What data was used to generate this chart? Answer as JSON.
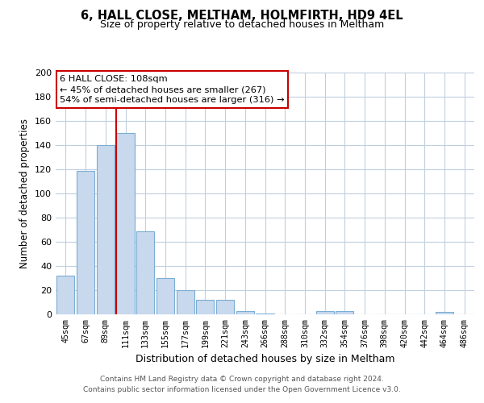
{
  "title": "6, HALL CLOSE, MELTHAM, HOLMFIRTH, HD9 4EL",
  "subtitle": "Size of property relative to detached houses in Meltham",
  "xlabel": "Distribution of detached houses by size in Meltham",
  "ylabel": "Number of detached properties",
  "bar_color": "#c8d9ee",
  "bar_edge_color": "#7aadd4",
  "categories": [
    "45sqm",
    "67sqm",
    "89sqm",
    "111sqm",
    "133sqm",
    "155sqm",
    "177sqm",
    "199sqm",
    "221sqm",
    "243sqm",
    "266sqm",
    "288sqm",
    "310sqm",
    "332sqm",
    "354sqm",
    "376sqm",
    "398sqm",
    "420sqm",
    "442sqm",
    "464sqm",
    "486sqm"
  ],
  "values": [
    32,
    119,
    140,
    150,
    69,
    30,
    20,
    12,
    12,
    3,
    1,
    0,
    0,
    3,
    3,
    0,
    0,
    0,
    0,
    2,
    0
  ],
  "vline_index": 3,
  "vline_color": "#cc0000",
  "ylim": [
    0,
    200
  ],
  "yticks": [
    0,
    20,
    40,
    60,
    80,
    100,
    120,
    140,
    160,
    180,
    200
  ],
  "annotation_text": "6 HALL CLOSE: 108sqm\n← 45% of detached houses are smaller (267)\n54% of semi-detached houses are larger (316) →",
  "footer_line1": "Contains HM Land Registry data © Crown copyright and database right 2024.",
  "footer_line2": "Contains public sector information licensed under the Open Government Licence v3.0.",
  "background_color": "#ffffff",
  "grid_color": "#c0cfdf",
  "title_fontsize": 10.5,
  "subtitle_fontsize": 9
}
